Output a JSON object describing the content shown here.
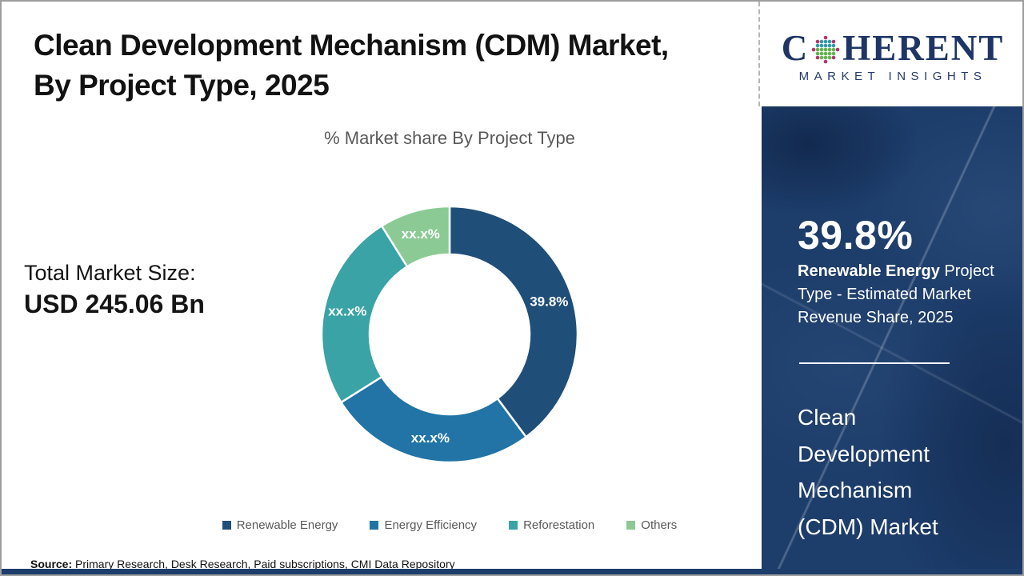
{
  "header": {
    "title_line1": "Clean Development Mechanism (CDM) Market,",
    "title_line2": "By Project Type, 2025"
  },
  "logo": {
    "word_start": "C",
    "word_end": "HERENT",
    "tagline": "MARKET INSIGHTS",
    "text_color": "#1e3565",
    "globe_dot_colors": {
      "outer": "#b5326e",
      "upper": "#2f9aa8",
      "core": "#63b44e"
    }
  },
  "market_size": {
    "label": "Total Market Size:",
    "value": "USD 245.06 Bn"
  },
  "chart_data": {
    "type": "pie",
    "donut": true,
    "title": "% Market share By Project Type",
    "categories": [
      "Renewable Energy",
      "Energy Efficiency",
      "Reforestation",
      "Others"
    ],
    "values": [
      39.8,
      26.3,
      25.0,
      8.9
    ],
    "labels": [
      "39.8%",
      "xx.x%",
      "xx.x%",
      "xx.x%"
    ],
    "colors": [
      "#1f4e79",
      "#2174a5",
      "#39a3a5",
      "#8bca95"
    ],
    "start_angle_deg": 0,
    "direction": "clockwise",
    "legend_position": "bottom",
    "label_color": "#ffffff"
  },
  "sidebar": {
    "stat_value": "39.8%",
    "stat_desc_bold": "Renewable Energy",
    "stat_desc_rest": " Project Type - Estimated Market Revenue Share, 2025",
    "market_name": "Clean Development Mechanism (CDM) Market",
    "bg_color": "#1d3d6b"
  },
  "footer": {
    "source_label": "Source:",
    "source_text": " Primary Research, Desk Research, Paid subscriptions, CMI Data Repository"
  }
}
